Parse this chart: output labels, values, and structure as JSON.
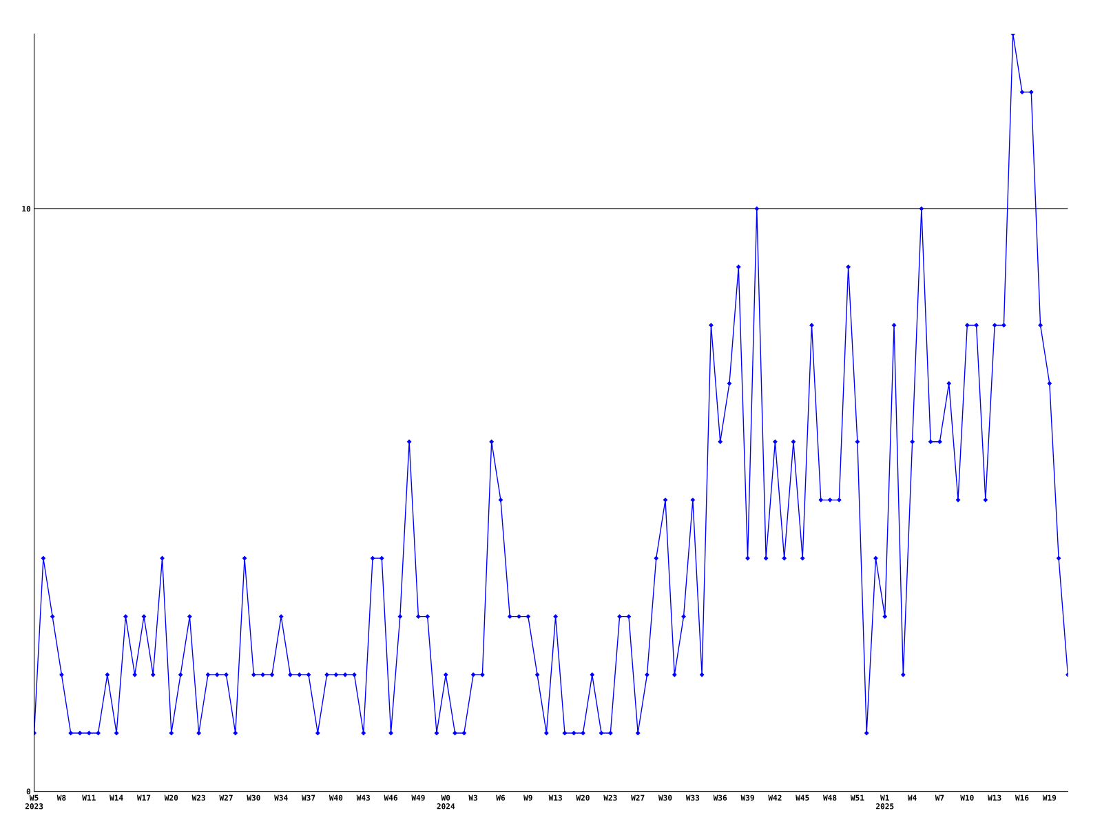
{
  "chart_data": {
    "type": "line",
    "categories": [
      "W5\n2023",
      null,
      null,
      "W8",
      null,
      null,
      "W11",
      null,
      null,
      "W14",
      null,
      null,
      "W17",
      null,
      null,
      "W20",
      null,
      null,
      "W23",
      null,
      null,
      "W27",
      null,
      null,
      "W30",
      null,
      null,
      "W34",
      null,
      null,
      "W37",
      null,
      null,
      "W40",
      null,
      null,
      "W43",
      null,
      null,
      "W46",
      null,
      null,
      "W49",
      null,
      null,
      "W0\n2024",
      null,
      null,
      "W3",
      null,
      null,
      "W6",
      null,
      null,
      "W9",
      null,
      null,
      "W13",
      null,
      null,
      "W20",
      null,
      null,
      "W23",
      null,
      null,
      "W27",
      null,
      null,
      "W30",
      null,
      null,
      "W33",
      null,
      null,
      "W36",
      null,
      null,
      "W39",
      null,
      null,
      "W42",
      null,
      null,
      "W45",
      null,
      null,
      "W48",
      null,
      null,
      "W51",
      null,
      null,
      "W1\n2025",
      null,
      null,
      "W4",
      null,
      null,
      "W7",
      null,
      null,
      "W10",
      null,
      null,
      "W13",
      null,
      null,
      "W16",
      null,
      null,
      "W19",
      null,
      null
    ],
    "series": [
      {
        "color": "#0000ff",
        "values": [
          1,
          4,
          3,
          2,
          1,
          1,
          1,
          1,
          2,
          1,
          3,
          2,
          3,
          2,
          4,
          1,
          2,
          3,
          1,
          2,
          2,
          2,
          1,
          4,
          2,
          2,
          2,
          3,
          2,
          2,
          2,
          1,
          2,
          2,
          2,
          2,
          1,
          4,
          4,
          1,
          3,
          6,
          3,
          3,
          1,
          2,
          1,
          1,
          2,
          2,
          6,
          5,
          3,
          3,
          3,
          2,
          1,
          3,
          1,
          1,
          1,
          2,
          1,
          1,
          3,
          3,
          1,
          2,
          4,
          5,
          2,
          3,
          5,
          2,
          8,
          6,
          7,
          9,
          4,
          10,
          4,
          6,
          4,
          6,
          4,
          8,
          5,
          5,
          5,
          9,
          6,
          1,
          4,
          3,
          8,
          2,
          6,
          10,
          6,
          6,
          7,
          5,
          8,
          8,
          5,
          8,
          8,
          13,
          12,
          12,
          8,
          7,
          4,
          2
        ]
      }
    ],
    "ylim": [
      0,
      13
    ],
    "yticks": [
      0,
      10
    ],
    "grid": "y",
    "marker": "diamond",
    "line_style": "solid"
  }
}
